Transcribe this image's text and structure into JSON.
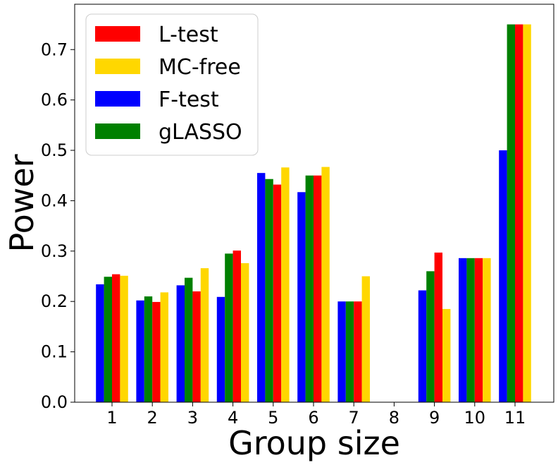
{
  "chart_data": {
    "type": "bar",
    "xlabel": "Group size",
    "ylabel": "Power",
    "categories": [
      "1",
      "2",
      "3",
      "4",
      "5",
      "6",
      "7",
      "8",
      "9",
      "10",
      "11"
    ],
    "ylim": [
      0,
      0.79
    ],
    "yticks": [
      "0.0",
      "0.1",
      "0.2",
      "0.3",
      "0.4",
      "0.5",
      "0.6",
      "0.7"
    ],
    "legend_position": "top-left",
    "grid": false,
    "series": [
      {
        "name": "F-test",
        "color": "#0000ff",
        "values": [
          0.234,
          0.202,
          0.232,
          0.209,
          0.455,
          0.417,
          0.2,
          null,
          0.222,
          0.286,
          0.5
        ]
      },
      {
        "name": "gLASSO",
        "color": "#008000",
        "values": [
          0.249,
          0.21,
          0.247,
          0.295,
          0.443,
          0.45,
          0.2,
          null,
          0.26,
          0.286,
          0.75
        ]
      },
      {
        "name": "L-test",
        "color": "#ff0000",
        "values": [
          0.254,
          0.199,
          0.22,
          0.301,
          0.432,
          0.45,
          0.2,
          null,
          0.297,
          0.286,
          0.75
        ]
      },
      {
        "name": "MC-free",
        "color": "#ffd700",
        "values": [
          0.251,
          0.218,
          0.266,
          0.276,
          0.466,
          0.467,
          0.25,
          null,
          0.185,
          0.286,
          0.75
        ]
      }
    ],
    "legend_order": [
      "L-test",
      "MC-free",
      "F-test",
      "gLASSO"
    ]
  }
}
